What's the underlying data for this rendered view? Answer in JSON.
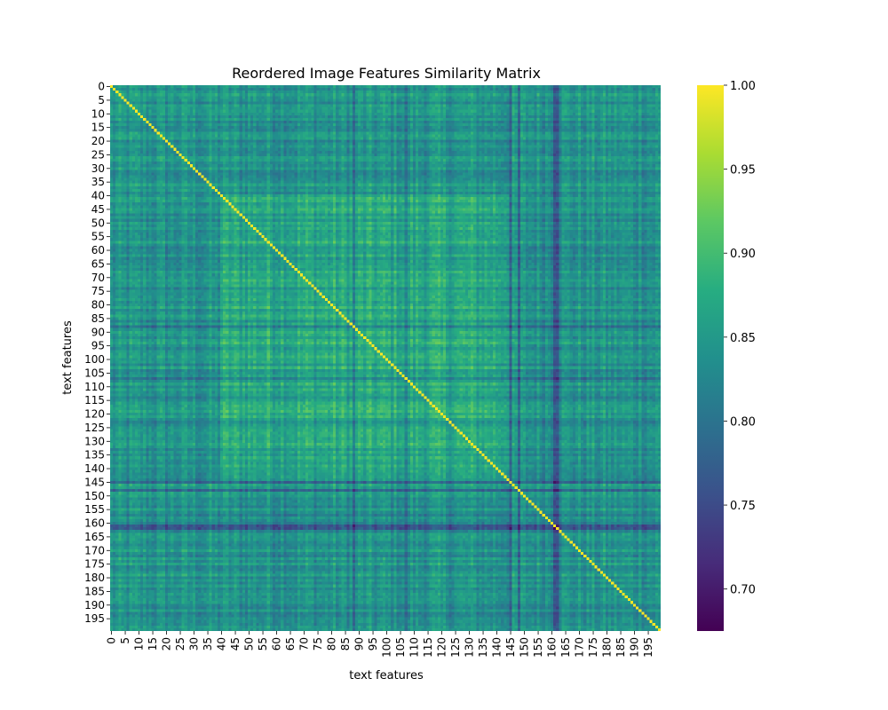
{
  "chart_data": {
    "type": "heatmap",
    "title": "Reordered Image Features Similarity Matrix",
    "xlabel": "text features",
    "ylabel": "text features",
    "n": 200,
    "tick_step": 5,
    "x_tick_labels": [
      "0",
      "5",
      "10",
      "15",
      "20",
      "25",
      "30",
      "35",
      "40",
      "45",
      "50",
      "55",
      "60",
      "65",
      "70",
      "75",
      "80",
      "85",
      "90",
      "95",
      "100",
      "105",
      "110",
      "115",
      "120",
      "125",
      "130",
      "135",
      "140",
      "145",
      "150",
      "155",
      "160",
      "165",
      "170",
      "175",
      "180",
      "185",
      "190",
      "195"
    ],
    "y_tick_labels": [
      "0",
      "5",
      "10",
      "15",
      "20",
      "25",
      "30",
      "35",
      "40",
      "45",
      "50",
      "55",
      "60",
      "65",
      "70",
      "75",
      "80",
      "85",
      "90",
      "95",
      "100",
      "105",
      "110",
      "115",
      "120",
      "125",
      "130",
      "135",
      "140",
      "145",
      "150",
      "155",
      "160",
      "165",
      "170",
      "175",
      "180",
      "185",
      "190",
      "195"
    ],
    "colormap": "viridis",
    "vmin": 0.675,
    "vmax": 1.0,
    "colorbar_ticks": [
      "0.70",
      "0.75",
      "0.80",
      "0.85",
      "0.90",
      "0.95",
      "1.00"
    ],
    "colorbar_tick_values": [
      0.7,
      0.75,
      0.8,
      0.85,
      0.9,
      0.95,
      1.0
    ],
    "diagonal_value": 1.0,
    "high_similarity_block": {
      "rows": [
        40,
        144
      ],
      "cols": [
        40,
        144
      ],
      "typical_value": 0.91
    },
    "low_similarity_lines": [
      88,
      107,
      145,
      148,
      161,
      162
    ],
    "typical_off_block_value": 0.85,
    "grid": false,
    "colorbar_position": "right"
  }
}
